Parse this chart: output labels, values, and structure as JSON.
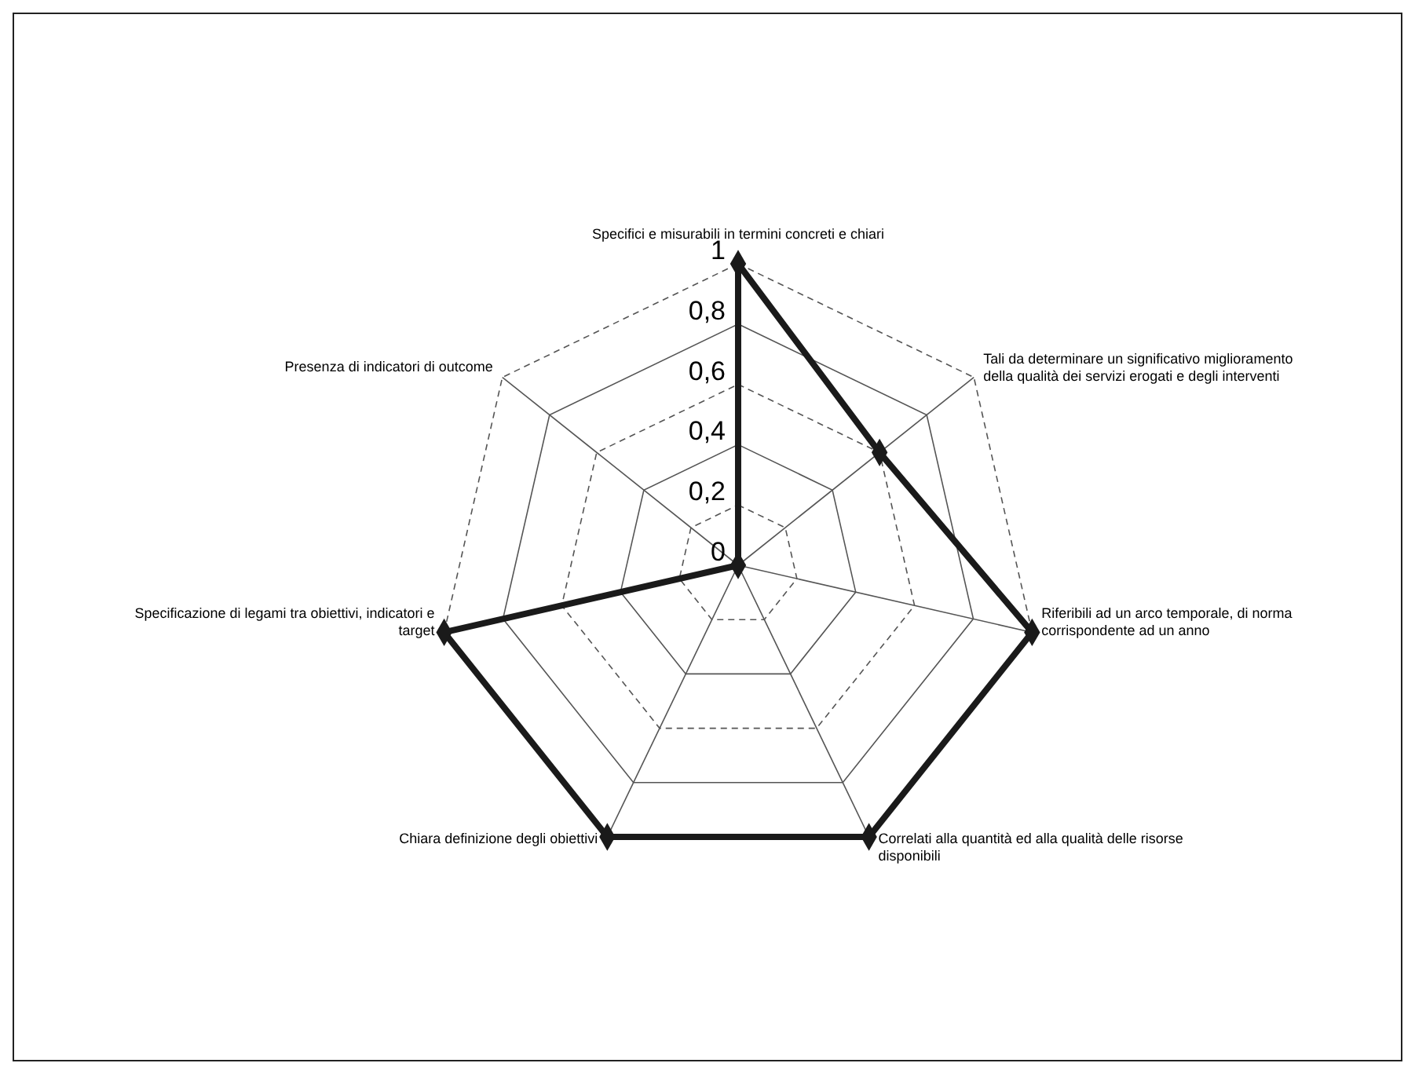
{
  "chart_data": {
    "type": "radar",
    "categories": [
      "Specifici e misurabili in termini concreti e chiari",
      "Tali da determinare un significativo miglioramento della qualità dei servizi erogati e degli interventi",
      "Riferibili ad un arco temporale, di norma corrispondente ad un anno",
      "Correlati alla quantità ed alla qualità delle risorse disponibili",
      "Chiara definizione degli obiettivi",
      "Specificazione di legami tra obiettivi, indicatori e target",
      "Presenza di indicatori di outcome"
    ],
    "series": [
      {
        "color": "#1a1a1a",
        "values": [
          1,
          0.6,
          1,
          1,
          1,
          1,
          0
        ]
      }
    ],
    "ylim": [
      0,
      1
    ],
    "yticks": [
      {
        "value": 0,
        "label": "0"
      },
      {
        "value": 0.2,
        "label": "0,2"
      },
      {
        "value": 0.4,
        "label": "0,4"
      },
      {
        "value": 0.6,
        "label": "0,6"
      },
      {
        "value": 0.8,
        "label": "0,8"
      },
      {
        "value": 1,
        "label": "1"
      }
    ],
    "grid": true,
    "marker": "diamond"
  }
}
